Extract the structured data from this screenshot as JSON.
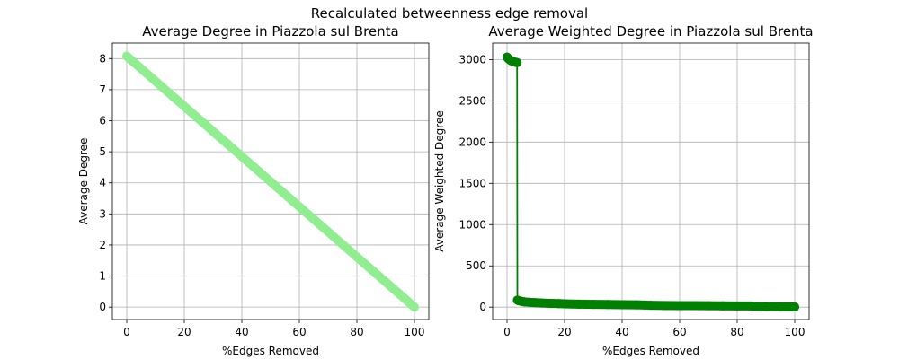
{
  "suptitle": "Recalculated betweenness edge removal",
  "chart_data": [
    {
      "type": "scatter",
      "title": "Average Degree in Piazzola sul Brenta",
      "xlabel": "%Edges Removed",
      "ylabel": "Average Degree",
      "xlim": [
        -5,
        105
      ],
      "ylim": [
        -0.4,
        8.5
      ],
      "xticks": [
        0,
        20,
        40,
        60,
        80,
        100
      ],
      "yticks": [
        0,
        1,
        2,
        3,
        4,
        5,
        6,
        7,
        8
      ],
      "grid": true,
      "color": "#90ee90",
      "series": [
        {
          "x": [
            0,
            100
          ],
          "y": [
            8.08,
            0
          ]
        }
      ]
    },
    {
      "type": "line",
      "title": "Average Weighted Degree in Piazzola sul Brenta",
      "xlabel": "%Edges Removed",
      "ylabel": "Average Weighted Degree",
      "xlim": [
        -5,
        105
      ],
      "ylim": [
        -150,
        3200
      ],
      "xticks": [
        0,
        20,
        40,
        60,
        80,
        100
      ],
      "yticks": [
        0,
        500,
        1000,
        1500,
        2000,
        2500,
        3000
      ],
      "grid": true,
      "color": "#008000",
      "series": [
        {
          "x": [
            0,
            0.5,
            1,
            1.5,
            2,
            2.5,
            3,
            3.5,
            3.6,
            4,
            5,
            6,
            8,
            10,
            12,
            15,
            18,
            20,
            25,
            30,
            35,
            40,
            45,
            48,
            50,
            55,
            60,
            65,
            70,
            75,
            80,
            85,
            86,
            90,
            95,
            100
          ],
          "y": [
            3030,
            3010,
            2995,
            2985,
            2978,
            2972,
            2968,
            2964,
            85,
            78,
            70,
            64,
            58,
            54,
            50,
            46,
            43,
            40,
            36,
            34,
            32,
            30,
            28,
            26,
            22,
            20,
            19,
            18,
            17,
            16,
            15,
            14,
            8,
            6,
            4,
            2
          ]
        }
      ]
    }
  ]
}
